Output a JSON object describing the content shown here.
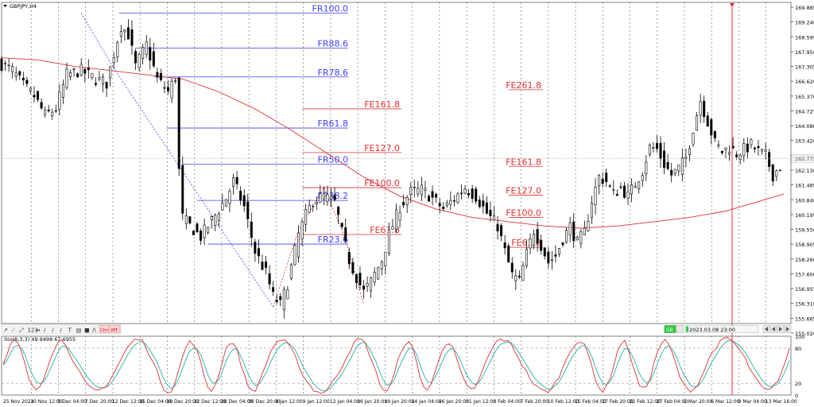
{
  "symbol_label": "GBPJPY,H4",
  "indicator_label": "Sto(8,3,3) 49.9498 67.6955",
  "status_badge": "GB",
  "cursor_time": "2023.03.08 23:00",
  "toolbar": {
    "items": [
      "↗",
      "⟋",
      "⤢",
      "123",
      "↔",
      "/",
      "/",
      "/",
      "T",
      "▤",
      "■",
      "/\\"
    ],
    "chr": "Chr:",
    "mt": "MT"
  },
  "colors": {
    "fib_retracement": "#3d3dff",
    "fib_expansion": "#e03030",
    "moving_average": "#e03030",
    "stoch_main": "#e03030",
    "stoch_signal": "#20b2aa",
    "candle": "#000000",
    "grid": "#d0d0d0",
    "vline": "#e03030",
    "crosshair": "#b0b0b0"
  },
  "chart_data": [
    {
      "type": "candlestick",
      "instrument": "GBPJPY",
      "timeframe": "H4",
      "ylim": [
        155.02,
        170.1
      ],
      "y_ticks": [
        "169.885",
        "169.240",
        "168.595",
        "167.950",
        "167.305",
        "166.620",
        "165.370",
        "164.725",
        "164.080",
        "163.420",
        "162.775",
        "162.130",
        "161.485",
        "160.840",
        "160.195",
        "159.550",
        "158.905",
        "158.260",
        "157.600",
        "156.955",
        "156.310",
        "155.665",
        "155.020"
      ],
      "x_ticks": [
        "25 Nov 2022",
        "30 Nov 12:00",
        "5 Dec 04:00",
        "7 Dec 20:00",
        "12 Dec 12:00",
        "15 Dec 04:00",
        "19 Dec 20:00",
        "22 Dec 12:00",
        "28 Dec 04:00",
        "30 Dec 20:00",
        "4 Jan 12:00",
        "9 Jan 12:00",
        "12 Jan 04:00",
        "16 Jan 20:00",
        "19 Jan 20:00",
        "24 Jan 04:00",
        "26 Jan 20:00",
        "31 Jan 12:00",
        "3 Feb 04:00",
        "7 Feb 20:00",
        "10 Feb 12:00",
        "15 Feb 04:00",
        "17 Feb 20:00",
        "22 Feb 12:00",
        "27 Feb 04:00",
        "1 Mar 20:00",
        "6 Mar 12:00",
        "9 Mar 04:00",
        "13 Mar 16:00"
      ],
      "current_price": "162.775",
      "close_path": [
        [
          0,
          167.2
        ],
        [
          6,
          166.9
        ],
        [
          12,
          166.2
        ],
        [
          18,
          165.7
        ],
        [
          24,
          164.8
        ],
        [
          30,
          165.1
        ],
        [
          36,
          166.7
        ],
        [
          44,
          166.9
        ],
        [
          52,
          166.5
        ],
        [
          58,
          166.3
        ],
        [
          62,
          167.7
        ],
        [
          66,
          169.0
        ],
        [
          70,
          168.6
        ],
        [
          74,
          167.1
        ],
        [
          80,
          168.1
        ],
        [
          86,
          166.5
        ],
        [
          92,
          165.9
        ],
        [
          96,
          166.6
        ],
        [
          98,
          162.2
        ],
        [
          100,
          160.0
        ],
        [
          104,
          159.6
        ],
        [
          110,
          159.1
        ],
        [
          118,
          160.1
        ],
        [
          124,
          160.9
        ],
        [
          128,
          161.7
        ],
        [
          134,
          160.5
        ],
        [
          140,
          158.4
        ],
        [
          146,
          157.4
        ],
        [
          150,
          156.3
        ],
        [
          154,
          155.9
        ],
        [
          158,
          156.9
        ],
        [
          164,
          159.2
        ],
        [
          168,
          160.1
        ],
        [
          172,
          160.8
        ],
        [
          178,
          161.0
        ],
        [
          184,
          160.7
        ],
        [
          188,
          159.3
        ],
        [
          192,
          158.0
        ],
        [
          196,
          157.2
        ],
        [
          200,
          156.5
        ],
        [
          204,
          157.0
        ],
        [
          210,
          158.0
        ],
        [
          214,
          159.2
        ],
        [
          220,
          160.5
        ],
        [
          226,
          161.2
        ],
        [
          232,
          161.3
        ],
        [
          238,
          160.9
        ],
        [
          244,
          160.4
        ],
        [
          250,
          160.9
        ],
        [
          256,
          161.4
        ],
        [
          262,
          161.0
        ],
        [
          268,
          160.2
        ],
        [
          274,
          159.6
        ],
        [
          278,
          158.4
        ],
        [
          282,
          157.3
        ],
        [
          286,
          157.0
        ],
        [
          290,
          158.3
        ],
        [
          294,
          159.4
        ],
        [
          298,
          158.7
        ],
        [
          302,
          157.9
        ],
        [
          306,
          158.2
        ],
        [
          310,
          159.0
        ],
        [
          314,
          159.6
        ],
        [
          318,
          158.8
        ],
        [
          322,
          159.3
        ],
        [
          326,
          160.8
        ],
        [
          330,
          161.9
        ],
        [
          334,
          161.7
        ],
        [
          338,
          161.1
        ],
        [
          342,
          161.4
        ],
        [
          346,
          161.0
        ],
        [
          350,
          161.6
        ],
        [
          354,
          162.2
        ],
        [
          358,
          163.3
        ],
        [
          362,
          163.2
        ],
        [
          366,
          162.5
        ],
        [
          370,
          162.0
        ],
        [
          374,
          162.3
        ],
        [
          378,
          162.8
        ],
        [
          382,
          164.2
        ],
        [
          386,
          165.5
        ],
        [
          390,
          164.5
        ],
        [
          394,
          163.5
        ],
        [
          398,
          163.1
        ],
        [
          402,
          163.3
        ],
        [
          406,
          163.0
        ],
        [
          410,
          163.2
        ],
        [
          414,
          163.4
        ],
        [
          418,
          163.1
        ],
        [
          422,
          162.9
        ],
        [
          426,
          162.0
        ],
        [
          430,
          162.4
        ]
      ],
      "series": [
        {
          "name": "",
          "type": "line",
          "values": [
            [
              0,
              167.5
            ],
            [
              20,
              167.4
            ],
            [
              40,
              167.1
            ],
            [
              60,
              166.9
            ],
            [
              80,
              166.7
            ],
            [
              100,
              166.5
            ],
            [
              120,
              165.9
            ],
            [
              140,
              165.1
            ],
            [
              160,
              164.1
            ],
            [
              180,
              163.0
            ],
            [
              200,
              161.9
            ],
            [
              220,
              161.0
            ],
            [
              240,
              160.4
            ],
            [
              260,
              160.0
            ],
            [
              280,
              159.8
            ],
            [
              300,
              159.6
            ],
            [
              320,
              159.5
            ],
            [
              340,
              159.6
            ],
            [
              360,
              159.8
            ],
            [
              380,
              160.0
            ],
            [
              400,
              160.3
            ],
            [
              420,
              160.8
            ],
            [
              432,
              161.1
            ]
          ]
        }
      ],
      "fib_retracement": {
        "levels": [
          {
            "label": "FR100.0",
            "price": 169.6
          },
          {
            "label": "FR88.6",
            "price": 167.95
          },
          {
            "label": "FR78.6",
            "price": 166.6
          },
          {
            "label": "FR61.8",
            "price": 164.2
          },
          {
            "label": "FR50.0",
            "price": 162.5
          },
          {
            "label": "FR38.2",
            "price": 160.8
          },
          {
            "label": "FR23.6",
            "price": 158.75
          }
        ]
      },
      "fib_expansion": {
        "levels_left": [
          {
            "label": "FE161.8",
            "price": 165.1
          },
          {
            "label": "FE127.0",
            "price": 163.05
          },
          {
            "label": "FE100.0",
            "price": 161.4
          },
          {
            "label": "FE61.8",
            "price": 159.2
          }
        ],
        "levels_right": [
          {
            "label": "FE261.8",
            "price": 166.0
          },
          {
            "label": "FE161.8",
            "price": 162.4
          },
          {
            "label": "FE127.0",
            "price": 161.05
          },
          {
            "label": "FE100.0",
            "price": 160.0
          },
          {
            "label": "FE61.8",
            "price": 158.6
          }
        ]
      }
    },
    {
      "type": "line",
      "title": "Sto(8,3,3)",
      "ylim": [
        0,
        100
      ],
      "y_ticks": [
        "100",
        "80",
        "20",
        "0"
      ],
      "series": [
        {
          "name": "Main",
          "value": 49.9498
        },
        {
          "name": "Signal",
          "value": 67.6955
        }
      ]
    }
  ]
}
